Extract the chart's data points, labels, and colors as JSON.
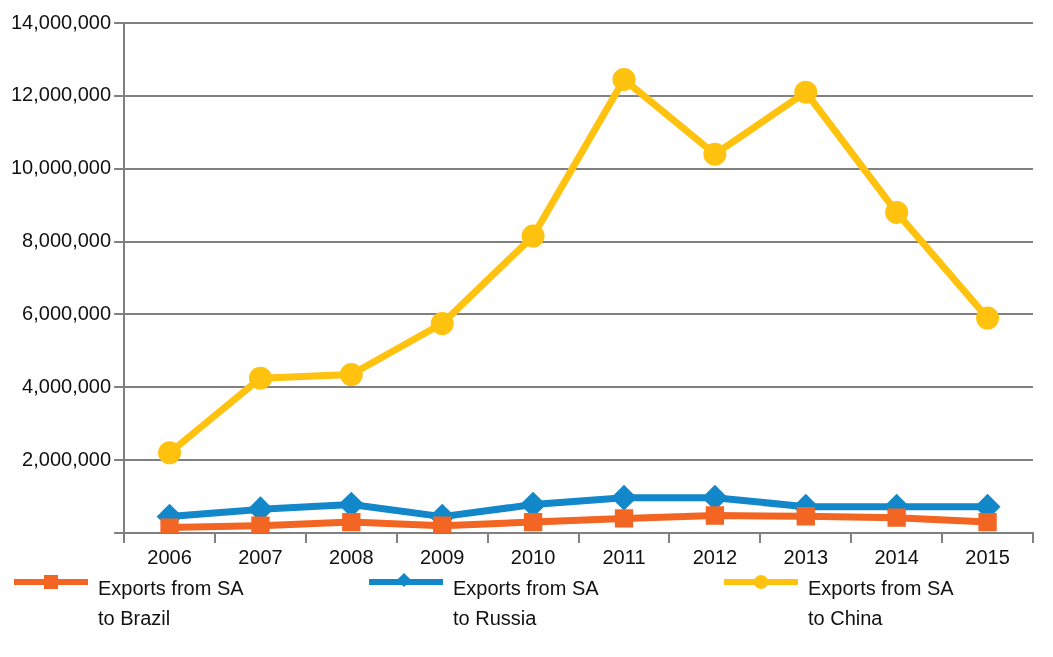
{
  "chart_data": {
    "type": "line",
    "categories": [
      "2006",
      "2007",
      "2008",
      "2009",
      "2010",
      "2011",
      "2012",
      "2013",
      "2014",
      "2015"
    ],
    "series": [
      {
        "name": "Exports from SA to Brazil",
        "color": "#f26522",
        "marker": "square",
        "values": [
          150000,
          200000,
          300000,
          200000,
          300000,
          400000,
          480000,
          460000,
          420000,
          300000
        ]
      },
      {
        "name": "Exports from SA to Russia",
        "color": "#1287c9",
        "marker": "diamond",
        "values": [
          450000,
          650000,
          780000,
          450000,
          780000,
          970000,
          970000,
          720000,
          720000,
          720000
        ]
      },
      {
        "name": "Exports from SA to China",
        "color": "#ffc20e",
        "marker": "circle",
        "values": [
          2200000,
          4250000,
          4350000,
          5750000,
          8150000,
          12450000,
          10400000,
          12100000,
          8800000,
          5900000
        ]
      }
    ],
    "ylim": [
      0,
      14000000
    ],
    "yticks": [
      {
        "value": 0,
        "label": null
      },
      {
        "value": 2000000,
        "label": "2,000,000"
      },
      {
        "value": 4000000,
        "label": "4,000,000"
      },
      {
        "value": 6000000,
        "label": "6,000,000"
      },
      {
        "value": 8000000,
        "label": "8,000,000"
      },
      {
        "value": 10000000,
        "label": "10,000,000"
      },
      {
        "value": 12000000,
        "label": "12,000,000"
      },
      {
        "value": 14000000,
        "label": "14,000,000"
      }
    ],
    "grid": "y",
    "legend": "bottom",
    "line_style": "solid"
  }
}
